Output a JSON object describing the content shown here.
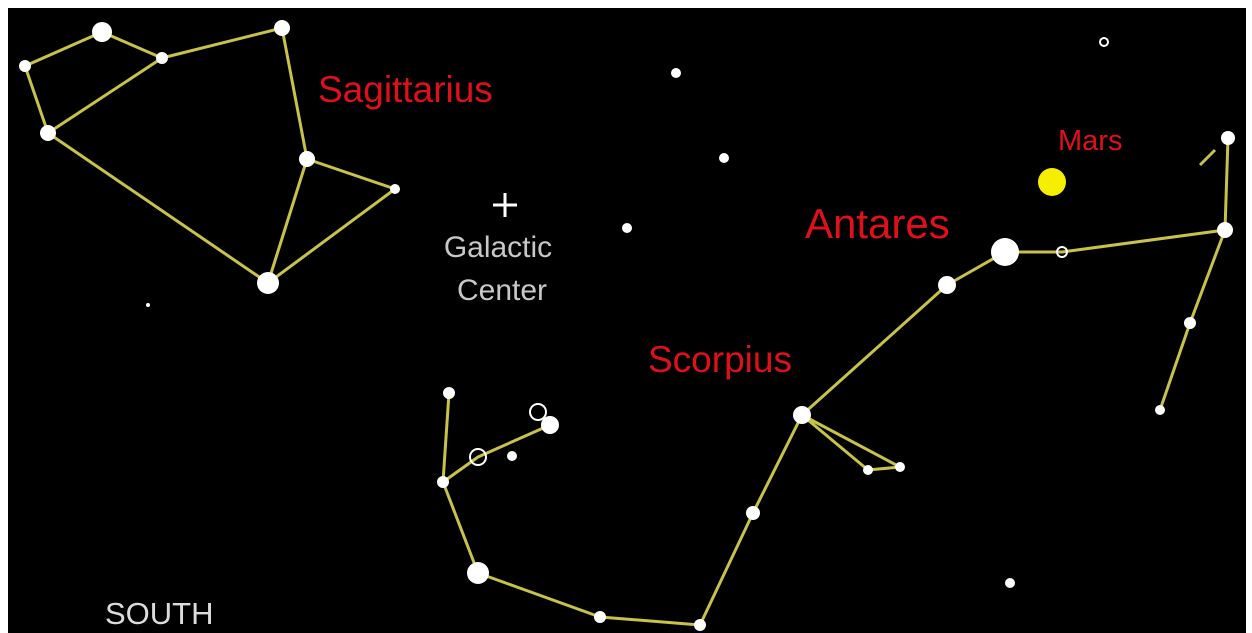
{
  "labels": {
    "sagittarius": "Sagittarius",
    "galactic_center": [
      "Galactic",
      "Center"
    ],
    "mars": "Mars",
    "antares": "Antares",
    "scorpius": "Scorpius",
    "south": "SOUTH"
  }
}
